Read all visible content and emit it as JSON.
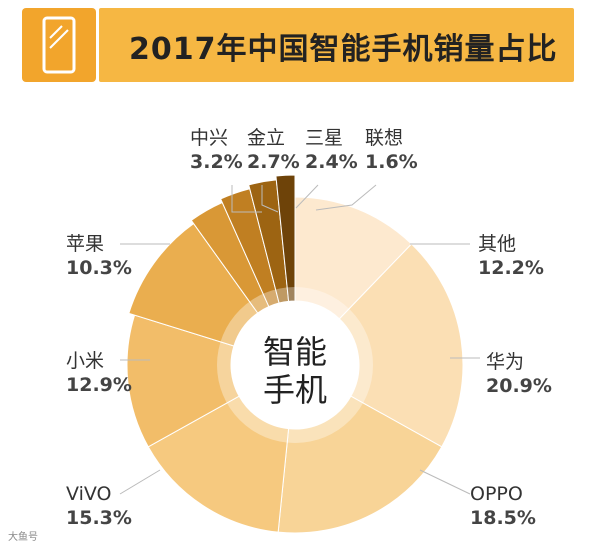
{
  "header": {
    "title": "2017年中国智能手机销量占比",
    "accent_color": "#f6b743",
    "icon": "smartphone-icon"
  },
  "center": {
    "line1": "智能",
    "line2": "手机"
  },
  "watermark": "大鱼号",
  "chart_data": {
    "type": "pie",
    "style": "donut",
    "title": "2017年中国智能手机销量占比",
    "unit": "%",
    "slices": [
      {
        "label": "其他",
        "value": 12.2,
        "display": "12.2%",
        "color": "#fde9cf"
      },
      {
        "label": "华为",
        "value": 20.9,
        "display": "20.9%",
        "color": "#fbdfb4"
      },
      {
        "label": "OPPO",
        "value": 18.5,
        "display": "18.5%",
        "color": "#f8d497"
      },
      {
        "label": "ViVO",
        "value": 15.3,
        "display": "15.3%",
        "color": "#f6c97f"
      },
      {
        "label": "小米",
        "value": 12.9,
        "display": "12.9%",
        "color": "#f2bd69"
      },
      {
        "label": "苹果",
        "value": 10.3,
        "display": "10.3%",
        "color": "#eaae4f"
      },
      {
        "label": "中兴",
        "value": 3.2,
        "display": "3.2%",
        "color": "#d99836"
      },
      {
        "label": "金立",
        "value": 2.7,
        "display": "2.7%",
        "color": "#c07f22"
      },
      {
        "label": "三星",
        "value": 2.4,
        "display": "2.4%",
        "color": "#9d6412"
      },
      {
        "label": "联想",
        "value": 1.6,
        "display": "1.6%",
        "color": "#6e4309"
      }
    ]
  }
}
